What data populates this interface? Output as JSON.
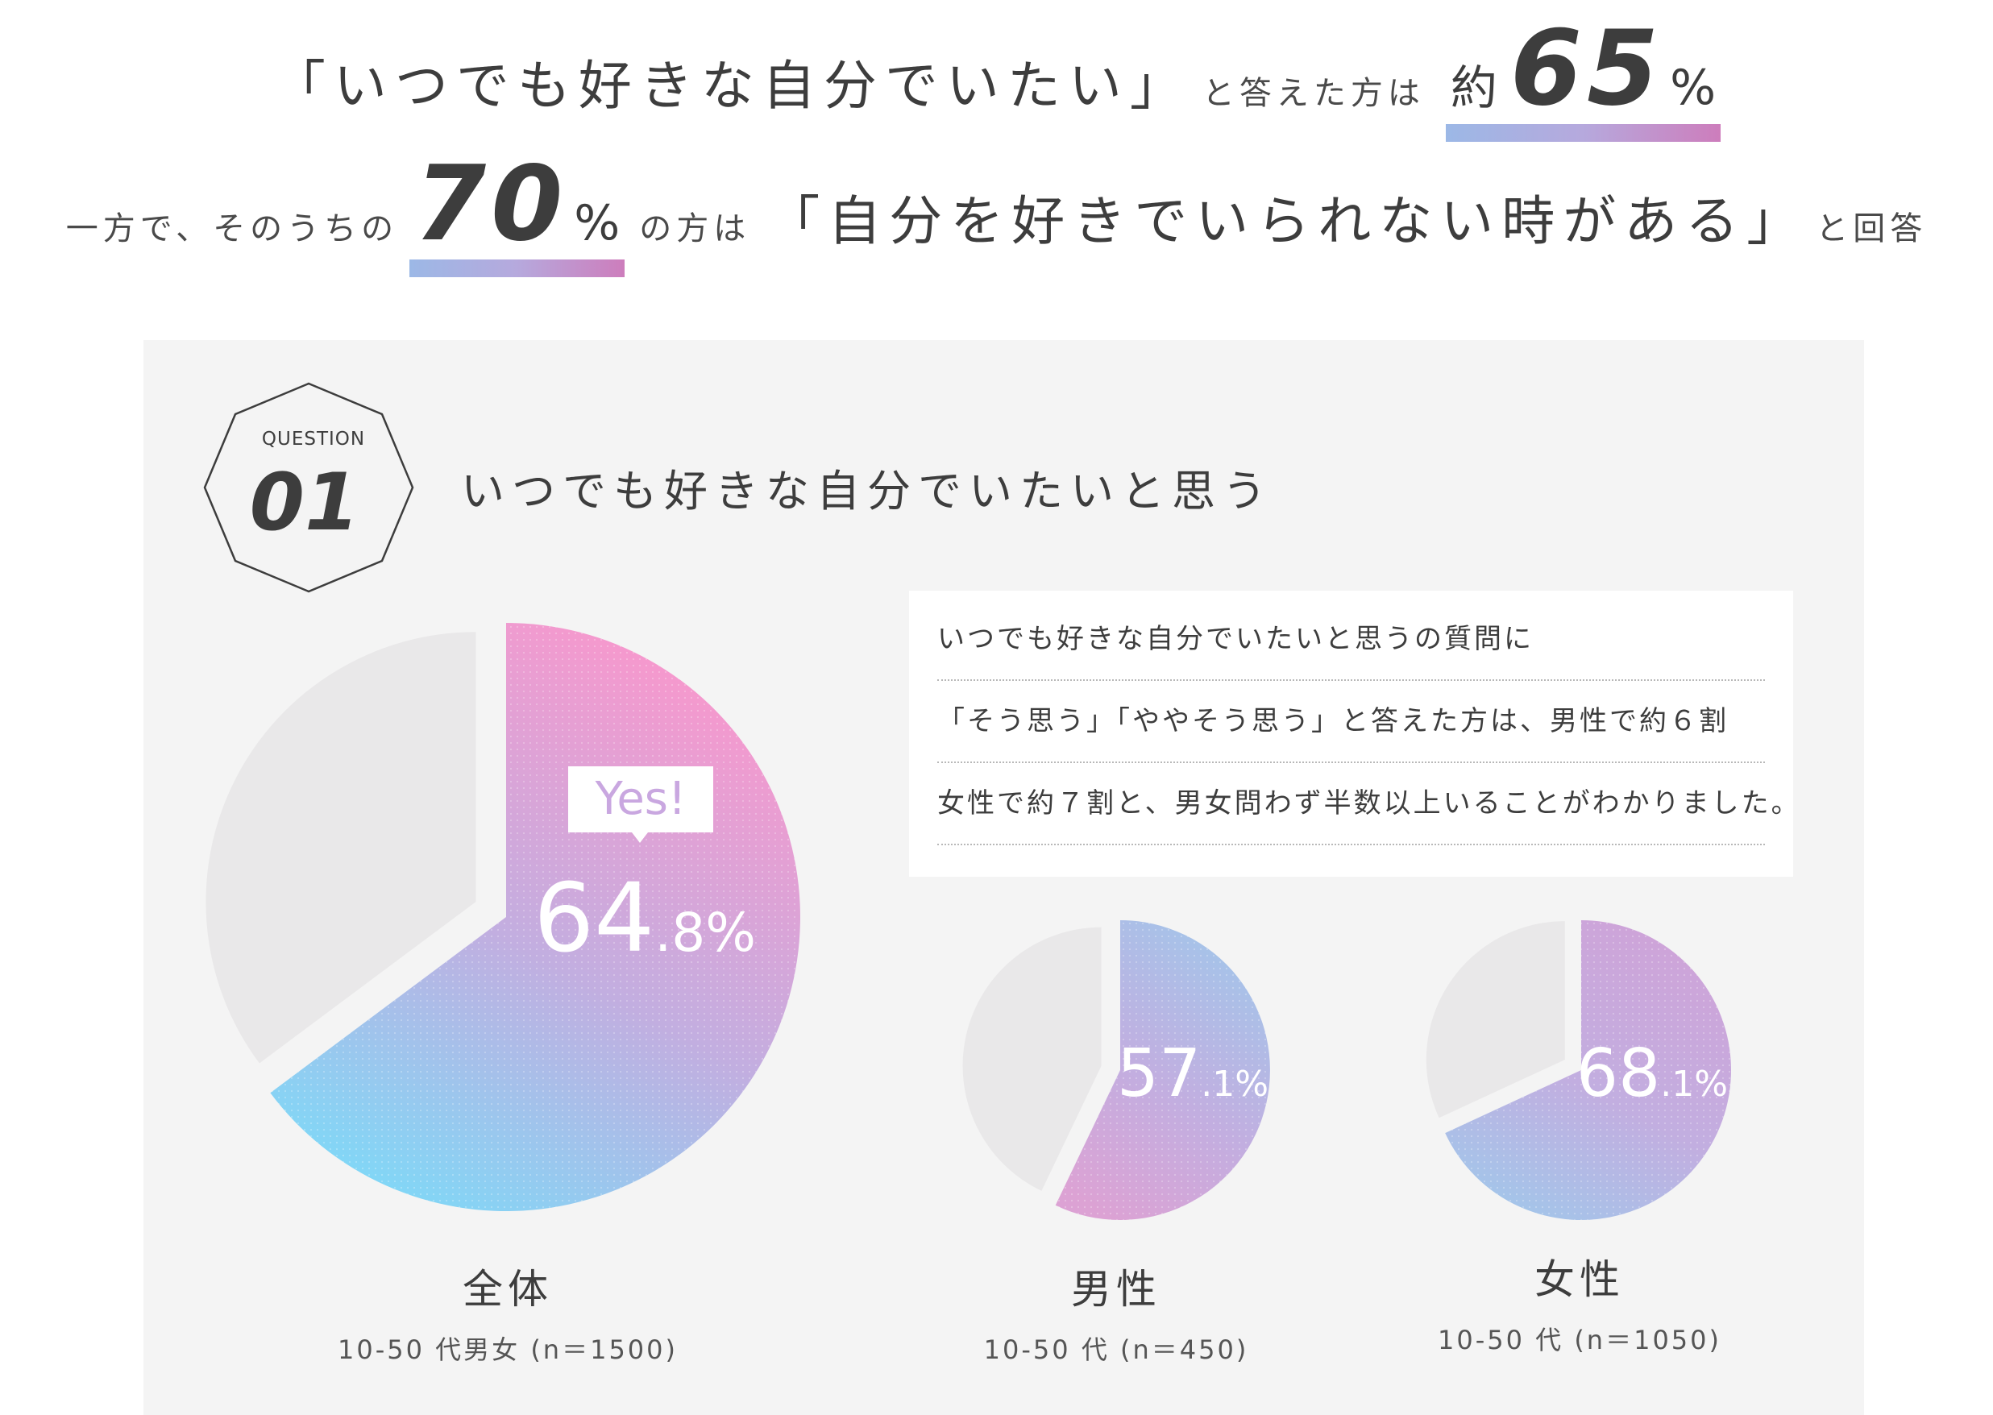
{
  "headline": {
    "line1": {
      "quote": "「いつでも好きな自分でいたい」",
      "tail": "と答えた方は",
      "prefix": "約",
      "number": "65",
      "unit": "%"
    },
    "line2": {
      "lead": "一方で、そのうちの",
      "number": "70",
      "unit": "%",
      "mid": "の方は",
      "quote": "「自分を好きでいられない時がある」",
      "tail": "と回答"
    }
  },
  "question": {
    "badge_label": "QUESTION",
    "badge_number": "01",
    "title": "いつでも好きな自分でいたいと思う"
  },
  "description": [
    "いつでも好きな自分でいたいと思うの質問に",
    "「そう思う」「ややそう思う」と答えた方は、男性で約６割",
    "女性で約７割と、男女問わず半数以上いることがわかりました。"
  ],
  "callout": "Yes!",
  "chart_data": [
    {
      "type": "pie",
      "name": "全体",
      "subtitle": "10-50 代男女 (n＝1500)",
      "values": [
        64.8,
        35.2
      ],
      "value_label_int": "64",
      "value_label_dec": ".8%",
      "colors": [
        "#fc96cb",
        "#7fd8f7"
      ]
    },
    {
      "type": "pie",
      "name": "男性",
      "subtitle": "10-50 代 (n＝450)",
      "values": [
        57.1,
        42.9
      ],
      "value_label_int": "57",
      "value_label_dec": ".1%",
      "colors": [
        "#a2c6ea",
        "#dca2d4"
      ]
    },
    {
      "type": "pie",
      "name": "女性",
      "subtitle": "10-50 代 (n＝1050)",
      "values": [
        68.1,
        31.9
      ],
      "value_label_int": "68",
      "value_label_dec": ".1%",
      "colors": [
        "#cfa3d8",
        "#a2c6ea"
      ]
    }
  ],
  "colors": {
    "remainder": "#e9e8e9",
    "panel": "#f4f4f4",
    "text": "#3d3d3d",
    "underline_start": "#9cb8e6",
    "underline_end": "#cd7dbc"
  }
}
